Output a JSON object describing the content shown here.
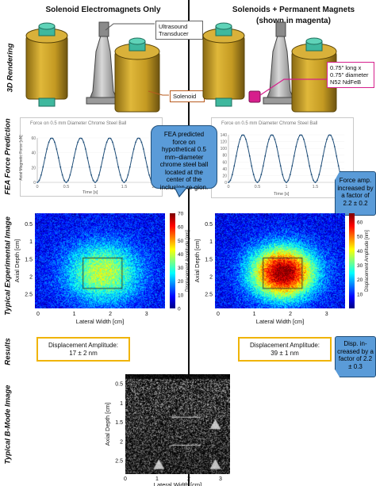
{
  "headers": {
    "left": "Solenoid Electromagnets Only",
    "right_line1": "Solenoids + Permanent Magnets",
    "right_line2": "(shown in magenta)"
  },
  "row_labels": {
    "render": "3D Rendering",
    "fea": "FEA Force Prediction",
    "experimental": "Typical Experimental Image",
    "results": "Results",
    "bmode": "Typical  B-Mode Image"
  },
  "callouts": {
    "transducer": [
      "Ultrasound",
      "Transducer"
    ],
    "solenoid": "Solenoid",
    "magnet": [
      "0.75\" long x",
      "0.75\" diameter",
      "N52 NdFeB"
    ]
  },
  "fea_plot": {
    "title": "Force on 0.5 mm Diameter Chrome Steel Ball",
    "ylabel": "Axial Magnetic Force [uN]",
    "xlabel": "Time [s]",
    "xticks": [
      "0",
      "0.5",
      "1",
      "1.5",
      "2"
    ],
    "left_yticks": [
      "0",
      "20",
      "40",
      "60"
    ],
    "right_yticks": [
      "0",
      "20",
      "40",
      "60",
      "80",
      "100",
      "120",
      "140"
    ]
  },
  "bubbles": {
    "fea": "FEA predicted force on hypothetical 0.5 mm–diameter chrome steel ball located at the center of the inclusion re-gion.",
    "force_amp": "Force amp. increased by a factor of  2.2 ± 0.2",
    "disp_amp": "Disp. in-creased by a factor of 2.2 ± 0.3"
  },
  "experimental": {
    "ylabel": "Axial Depth [cm]",
    "xlabel": "Lateral Width [cm]",
    "cb_label": "Displacement Amplitude [nm]",
    "yticks": [
      "0.5",
      "1",
      "1.5",
      "2",
      "2.5"
    ],
    "xticks": [
      "0",
      "1",
      "2",
      "3"
    ],
    "left_cb_ticks": [
      "70",
      "60",
      "50",
      "40",
      "30",
      "20",
      "10",
      "0"
    ],
    "right_cb_ticks": [
      "60",
      "50",
      "40",
      "30",
      "20",
      "10"
    ]
  },
  "results": {
    "left": {
      "line1": "Displacement Amplitude:",
      "line2": "17 ± 2 nm"
    },
    "right": {
      "line1": "Displacement Amplitude:",
      "line2": "39 ± 1 nm"
    }
  },
  "bmode": {
    "ylabel": "Axial Depth [cm]",
    "xlabel": "Lateral Width [cm]",
    "yticks": [
      "0.5",
      "1",
      "1.5",
      "2",
      "2.5"
    ],
    "xticks": [
      "0",
      "1",
      "2",
      "3"
    ]
  },
  "colors": {
    "solenoid": "#c8a227",
    "cap": "#3fb89e",
    "magnet": "#d61f8c",
    "bubble": "#5a9bd8",
    "result_border": "#f0b400",
    "curve": "#1f4e79"
  }
}
